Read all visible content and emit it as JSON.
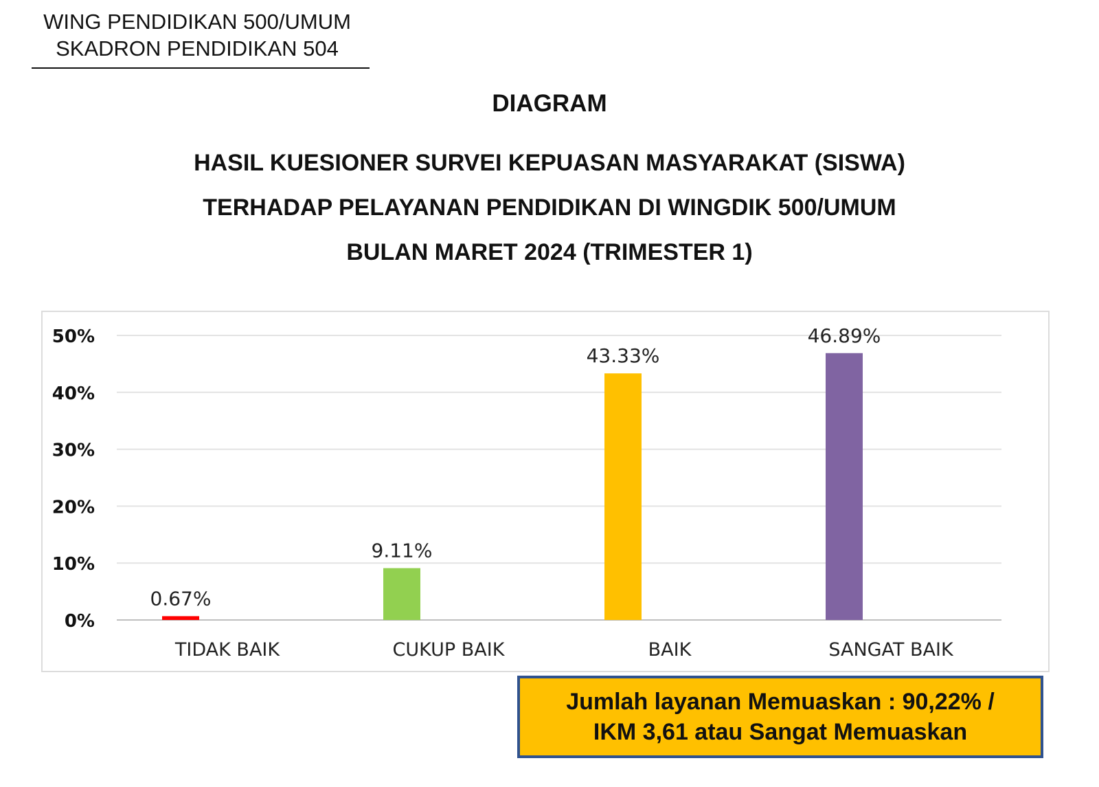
{
  "header": {
    "org_line1": "WING PENDIDIKAN 500/UMUM",
    "org_line2": "SKADRON PENDIDIKAN 504"
  },
  "title": {
    "line0": "DIAGRAM",
    "line1": "HASIL KUESIONER SURVEI KEPUASAN MASYARAKAT (SISWA)",
    "line2": "TERHADAP PELAYANAN PENDIDIKAN DI WINGDIK 500/UMUM",
    "line3": "BULAN MARET 2024 (TRIMESTER 1)"
  },
  "chart_data": {
    "type": "bar",
    "categories": [
      "TIDAK BAIK",
      "CUKUP BAIK",
      "BAIK",
      "SANGAT BAIK"
    ],
    "values": [
      0.67,
      9.11,
      43.33,
      46.89
    ],
    "data_labels": [
      "0.67%",
      "9.11%",
      "43.33%",
      "46.89%"
    ],
    "bar_colors": [
      "#ff0000",
      "#92d050",
      "#ffc000",
      "#8064a2"
    ],
    "y_ticks": [
      "0%",
      "10%",
      "20%",
      "30%",
      "40%",
      "50%"
    ],
    "ylim": [
      0,
      50
    ],
    "grid": true,
    "legend": "none"
  },
  "summary": {
    "line1": "Jumlah layanan Memuaskan : 90,22% /",
    "line2": "IKM 3,61 atau Sangat Memuaskan"
  }
}
